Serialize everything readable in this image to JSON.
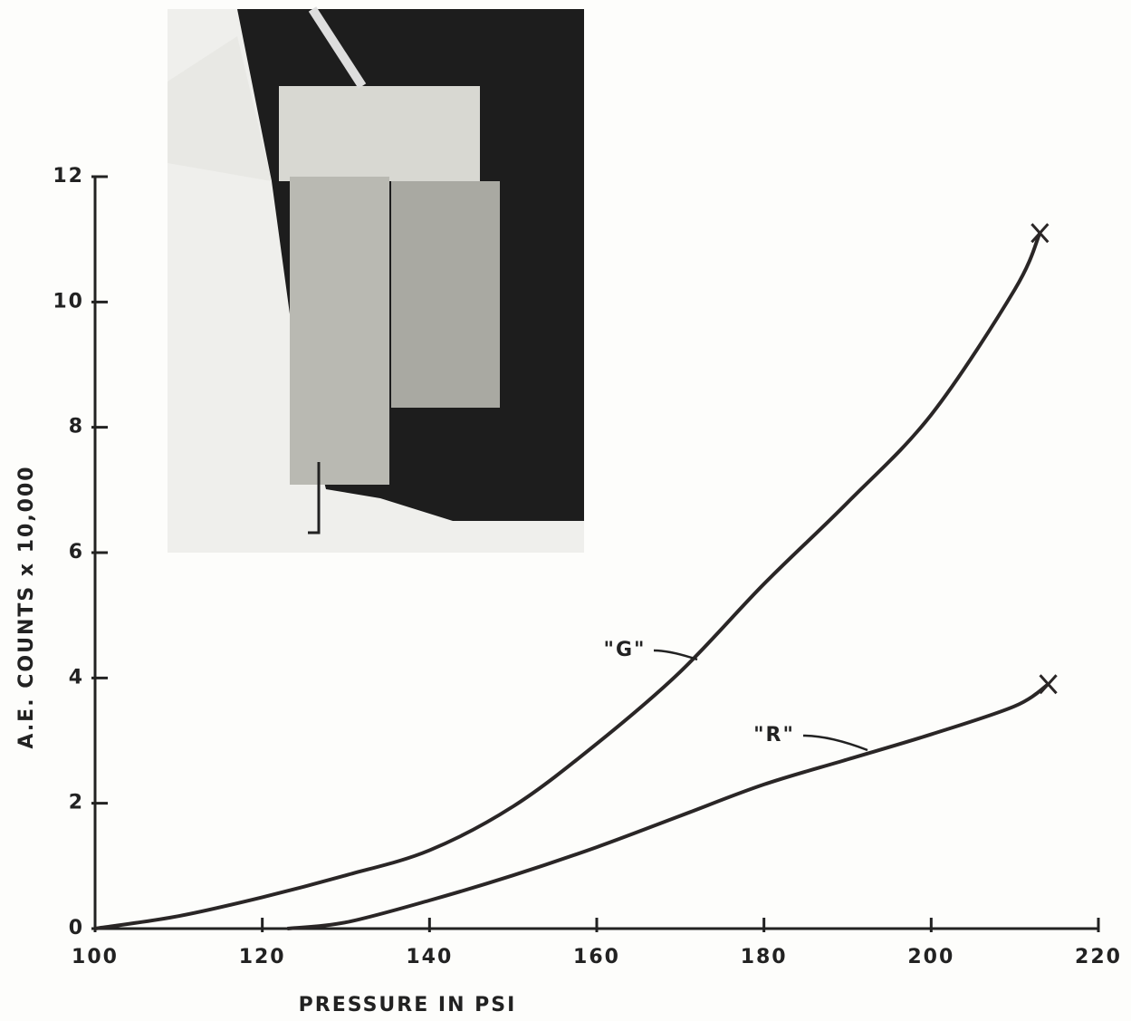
{
  "chart_data": {
    "type": "line",
    "xlabel": "PRESSURE  IN  PSI",
    "ylabel": "A.E.  COUNTS  x  10,000",
    "xlim": [
      100,
      220
    ],
    "xticks": [
      100,
      120,
      140,
      160,
      180,
      200,
      220
    ],
    "ylim": [
      0,
      12
    ],
    "yticks": [
      0,
      2,
      4,
      6,
      8,
      10,
      12
    ],
    "series": [
      {
        "name": "\"G\"",
        "color": "#2a2626",
        "x": [
          100,
          110,
          120,
          130,
          140,
          150,
          160,
          170,
          180,
          190,
          200,
          210,
          213
        ],
        "values": [
          0,
          0.2,
          0.5,
          0.85,
          1.25,
          1.95,
          2.95,
          4.1,
          5.5,
          6.8,
          8.2,
          10.2,
          11.1
        ]
      },
      {
        "name": "\"R\"",
        "color": "#2a2626",
        "x": [
          123,
          130,
          140,
          150,
          160,
          170,
          180,
          190,
          200,
          210,
          214
        ],
        "values": [
          0,
          0.1,
          0.45,
          0.85,
          1.3,
          1.8,
          2.3,
          2.7,
          3.1,
          3.55,
          3.9
        ]
      }
    ]
  }
}
